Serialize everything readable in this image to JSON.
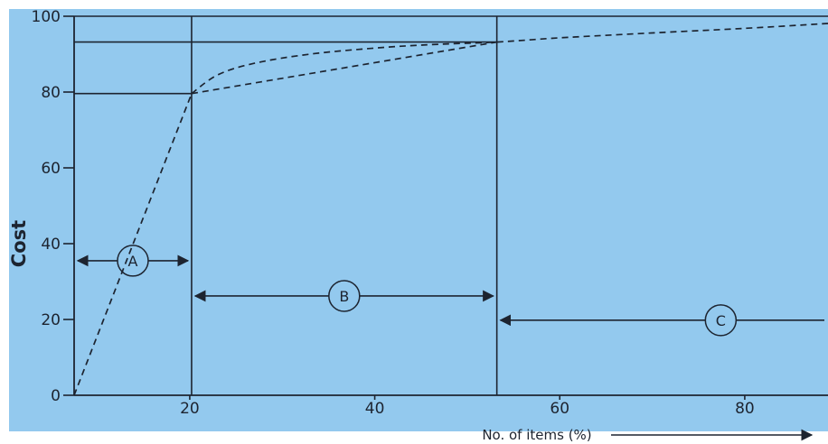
{
  "chart_data": {
    "type": "line",
    "title": "",
    "xlabel": "No. of items (%)",
    "ylabel": "Cost",
    "x_ticks": [
      "20",
      "40",
      "60",
      "80"
    ],
    "y_ticks": [
      "0",
      "20",
      "40",
      "60",
      "80",
      "100"
    ],
    "xlim": [
      7.5,
      89
    ],
    "ylim": [
      0,
      100
    ],
    "grid": false,
    "legend": "none",
    "colors": {
      "background": "#93c9ee",
      "ink": "#1d2430"
    },
    "series": [
      {
        "style": "dashed",
        "x": [
          7.5,
          20.2
        ],
        "y": [
          0,
          79.6
        ]
      },
      {
        "style": "dashed",
        "x": [
          20.2,
          53.2
        ],
        "y": [
          79.6,
          93.2
        ]
      },
      {
        "style": "dashed",
        "x": [
          20.2,
          23,
          27,
          33,
          40,
          46,
          53.2,
          60,
          70,
          80,
          89
        ],
        "y": [
          79.6,
          84.5,
          87.6,
          90.0,
          91.6,
          92.5,
          93.2,
          94.3,
          95.6,
          96.8,
          98.1
        ]
      }
    ],
    "reference_lines": [
      {
        "orientation": "vertical",
        "x": 20.2
      },
      {
        "orientation": "vertical",
        "x": 53.2
      },
      {
        "orientation": "horizontal",
        "y": 79.6,
        "from_x": 7.5,
        "to_x": 20.2
      },
      {
        "orientation": "horizontal",
        "y": 93.2,
        "from_x": 7.5,
        "to_x": 53.2
      },
      {
        "orientation": "horizontal",
        "y": 100,
        "from_x": 7.5,
        "to_x": 89
      }
    ],
    "annotations": [
      {
        "label": "A",
        "from_x": 7.5,
        "to_x": 20.2,
        "y": 35.5
      },
      {
        "label": "B",
        "from_x": 20.2,
        "to_x": 53.2,
        "y": 26.2
      },
      {
        "label": "C",
        "from_x": 53.2,
        "to_x": 89,
        "y": 19.8
      }
    ]
  }
}
